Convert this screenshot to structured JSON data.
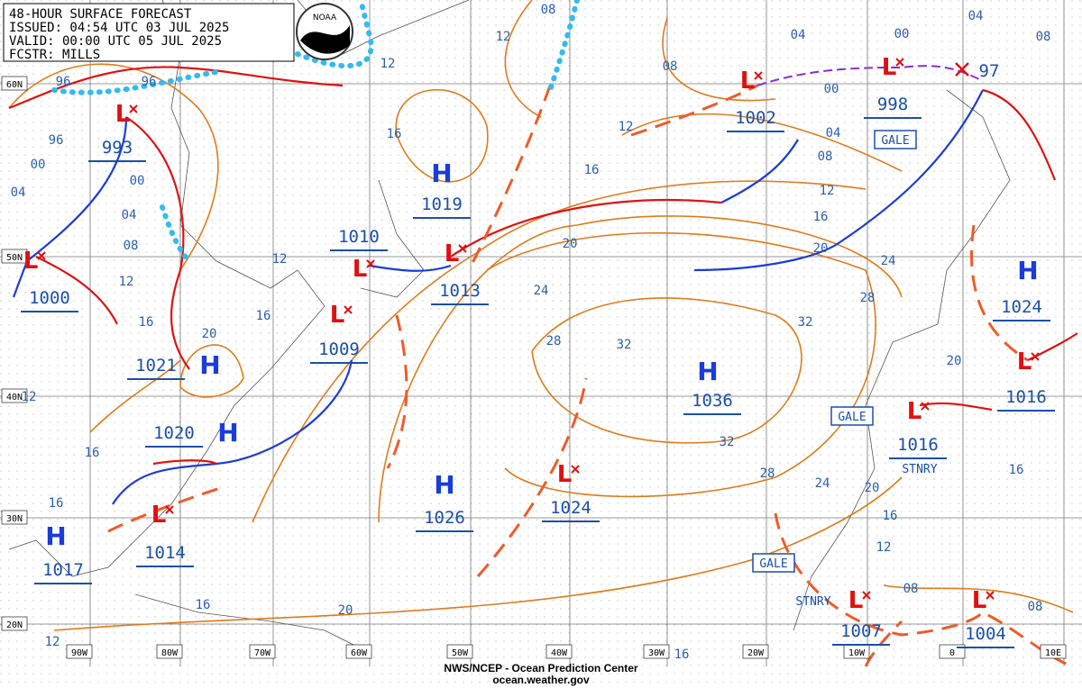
{
  "header": {
    "lines": [
      "48-HOUR SURFACE FORECAST",
      "ISSUED: 04:54 UTC 03 JUL 2025",
      "VALID:  00:00 UTC 05 JUL 2025",
      "FCSTR: MILLS"
    ]
  },
  "logo": "NOAA",
  "latitude_labels": [
    "60N",
    "50N",
    "40N",
    "30N",
    "20N"
  ],
  "longitude_labels": [
    "90W",
    "80W",
    "70W",
    "60W",
    "50W",
    "40W",
    "30W",
    "20W",
    "10W",
    "0",
    "10E"
  ],
  "pressure_centers": [
    {
      "type": "L",
      "pressure": "993"
    },
    {
      "type": "L",
      "pressure": "1000"
    },
    {
      "type": "H",
      "pressure": "1021"
    },
    {
      "type": "H",
      "pressure": "1020"
    },
    {
      "type": "H",
      "pressure": "1017"
    },
    {
      "type": "L",
      "pressure": "1014"
    },
    {
      "type": "L",
      "pressure": "1010"
    },
    {
      "type": "L",
      "pressure": "1009"
    },
    {
      "type": "L",
      "pressure": "1013"
    },
    {
      "type": "H",
      "pressure": "1019"
    },
    {
      "type": "H",
      "pressure": "1026"
    },
    {
      "type": "L",
      "pressure": "1024"
    },
    {
      "type": "H",
      "pressure": "1036"
    },
    {
      "type": "L",
      "pressure": "1002"
    },
    {
      "type": "L",
      "pressure": "998"
    },
    {
      "type": "H",
      "pressure": "1024"
    },
    {
      "type": "L",
      "pressure": "1016"
    },
    {
      "type": "L",
      "pressure": "1016"
    },
    {
      "type": "L",
      "pressure": "1007"
    },
    {
      "type": "L",
      "pressure": "1004"
    }
  ],
  "low_x_pressure": "97",
  "isobar_labels": [
    "96",
    "96",
    "96",
    "00",
    "04",
    "00",
    "04",
    "08",
    "12",
    "16",
    "20",
    "16",
    "12",
    "16",
    "12",
    "12",
    "08",
    "08",
    "04",
    "00",
    "04",
    "08",
    "00",
    "12",
    "04",
    "08",
    "12",
    "16",
    "20",
    "16",
    "20",
    "24",
    "28",
    "32",
    "32",
    "32",
    "28",
    "24",
    "20",
    "28",
    "24",
    "20",
    "16",
    "12",
    "08",
    "08",
    "16",
    "20",
    "16",
    "12",
    "16",
    "16",
    "12",
    "16"
  ],
  "annotations": [
    "GALE",
    "GALE",
    "GALE",
    "STNRY",
    "STNRY"
  ],
  "footer": {
    "lines": [
      "NWS/NCEP - Ocean Prediction Center",
      "ocean.weather.gov"
    ]
  }
}
